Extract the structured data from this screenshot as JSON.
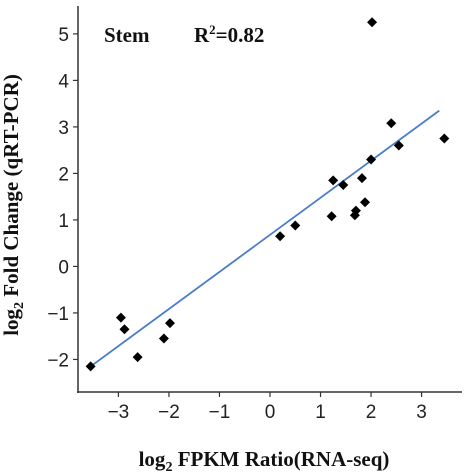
{
  "chart_data": {
    "type": "scatter",
    "xlabel": {
      "prefix": "log",
      "sub": "2",
      "rest": " FPKM Ratio(RNA-seq)"
    },
    "ylabel": {
      "prefix": "log",
      "sub": "2",
      "rest": " Fold Change (qRT-PCR)"
    },
    "annotation_left": "Stem",
    "annotation_right": {
      "base": "R",
      "sup": "2",
      "rest": "=0.82"
    },
    "xlim": [
      -3.8,
      3.8
    ],
    "ylim": [
      -2.7,
      5.6
    ],
    "x_ticks": [
      -3,
      -2,
      -1,
      0,
      1,
      2,
      3
    ],
    "x_tick_labels": [
      "−3",
      "−2",
      "−1",
      "0",
      "1",
      "2",
      "3"
    ],
    "y_ticks": [
      -2,
      -1,
      0,
      1,
      2,
      3,
      4,
      5
    ],
    "y_tick_labels": [
      "−2",
      "−1",
      "0",
      "1",
      "2",
      "3",
      "4",
      "5"
    ],
    "grid": false,
    "marker_color": "#000000",
    "fit_line_color": "#4a7cc9",
    "points": [
      {
        "x": -3.55,
        "y": -2.15
      },
      {
        "x": -2.95,
        "y": -1.1
      },
      {
        "x": -2.88,
        "y": -1.35
      },
      {
        "x": -2.62,
        "y": -1.95
      },
      {
        "x": -2.1,
        "y": -1.55
      },
      {
        "x": -1.98,
        "y": -1.22
      },
      {
        "x": 0.2,
        "y": 0.65
      },
      {
        "x": 0.5,
        "y": 0.88
      },
      {
        "x": 1.22,
        "y": 1.08
      },
      {
        "x": 1.25,
        "y": 1.85
      },
      {
        "x": 1.45,
        "y": 1.75
      },
      {
        "x": 1.68,
        "y": 1.1
      },
      {
        "x": 1.7,
        "y": 1.2
      },
      {
        "x": 1.82,
        "y": 1.9
      },
      {
        "x": 1.88,
        "y": 1.38
      },
      {
        "x": 2.0,
        "y": 2.3
      },
      {
        "x": 2.02,
        "y": 5.25
      },
      {
        "x": 2.4,
        "y": 3.08
      },
      {
        "x": 2.55,
        "y": 2.6
      },
      {
        "x": 3.45,
        "y": 2.75
      }
    ],
    "fit_line": {
      "x": [
        -3.55,
        3.35
      ],
      "y": [
        -2.15,
        3.35
      ]
    }
  }
}
